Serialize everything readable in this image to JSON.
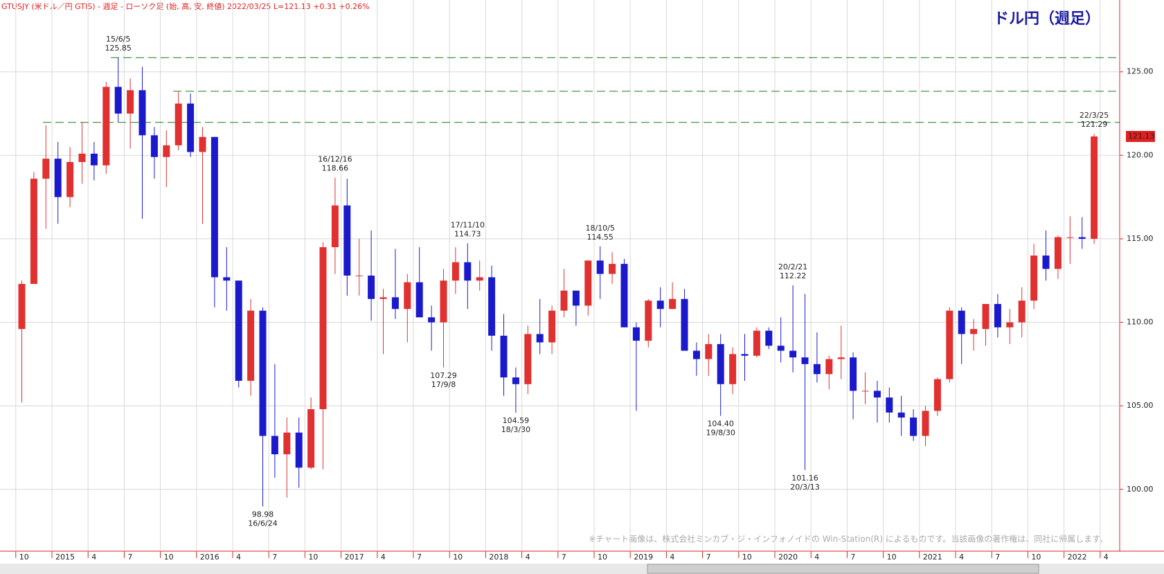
{
  "chart_data": {
    "type": "candlestick",
    "title": "GTUSJY (米ドル／円 GTIS) - 週足 - ローソク足 (始, 高, 安, 終値)  2022/03/25  L=121.13  +0.31  +0.26%",
    "badge": "ドル円（週足）",
    "watermark": "※チャート画像は、株式会社ミンカブ・ジ・インフォノイドの Win-Station(R) によるものです。当該画像の著作権は、同社に帰属します。",
    "up_color": "#e03030",
    "down_color": "#1a1acc",
    "grid": true,
    "ylim": [
      96.3,
      129.3
    ],
    "yticks": [
      {
        "value": 100,
        "label": "100.00"
      },
      {
        "value": 105,
        "label": "105.00"
      },
      {
        "value": 110,
        "label": "110.00"
      },
      {
        "value": 115,
        "label": "115.00"
      },
      {
        "value": 120,
        "label": "120.00"
      },
      {
        "value": 125,
        "label": "125.00"
      }
    ],
    "last_price": 121.13,
    "levels": [
      125.85,
      123.84,
      121.97
    ],
    "xticks": [
      {
        "value": "2014/10",
        "label": "10"
      },
      {
        "value": "2015/01",
        "label": "2015"
      },
      {
        "value": "2015/04",
        "label": "4"
      },
      {
        "value": "2015/07",
        "label": "7"
      },
      {
        "value": "2015/10",
        "label": "10"
      },
      {
        "value": "2016/01",
        "label": "2016"
      },
      {
        "value": "2016/04",
        "label": "4"
      },
      {
        "value": "2016/07",
        "label": "7"
      },
      {
        "value": "2016/10",
        "label": "10"
      },
      {
        "value": "2017/01",
        "label": "2017"
      },
      {
        "value": "2017/04",
        "label": "4"
      },
      {
        "value": "2017/07",
        "label": "7"
      },
      {
        "value": "2017/10",
        "label": "10"
      },
      {
        "value": "2018/01",
        "label": "2018"
      },
      {
        "value": "2018/04",
        "label": "4"
      },
      {
        "value": "2018/07",
        "label": "7"
      },
      {
        "value": "2018/10",
        "label": "10"
      },
      {
        "value": "2019/01",
        "label": "2019"
      },
      {
        "value": "2019/04",
        "label": "4"
      },
      {
        "value": "2019/07",
        "label": "7"
      },
      {
        "value": "2019/10",
        "label": "10"
      },
      {
        "value": "2020/01",
        "label": "2020"
      },
      {
        "value": "2020/04",
        "label": "4"
      },
      {
        "value": "2020/07",
        "label": "7"
      },
      {
        "value": "2020/10",
        "label": "10"
      },
      {
        "value": "2021/01",
        "label": "2021"
      },
      {
        "value": "2021/04",
        "label": "4"
      },
      {
        "value": "2021/07",
        "label": "7"
      },
      {
        "value": "2021/10",
        "label": "10"
      },
      {
        "value": "2022/01",
        "label": "2022"
      },
      {
        "value": "2022/04",
        "label": "4"
      }
    ],
    "x": [
      "2014/10",
      "2014/11",
      "2014/12",
      "2015/01",
      "2015/02",
      "2015/03",
      "2015/04",
      "2015/05",
      "2015/06",
      "2015/07",
      "2015/08",
      "2015/09",
      "2015/10",
      "2015/11",
      "2015/12",
      "2016/01",
      "2016/02",
      "2016/03",
      "2016/04",
      "2016/05",
      "2016/06",
      "2016/07",
      "2016/08",
      "2016/09",
      "2016/10",
      "2016/11",
      "2016/12",
      "2017/01",
      "2017/02",
      "2017/03",
      "2017/04",
      "2017/05",
      "2017/06",
      "2017/07",
      "2017/08",
      "2017/09",
      "2017/10",
      "2017/11",
      "2017/12",
      "2018/01",
      "2018/02",
      "2018/03",
      "2018/04",
      "2018/05",
      "2018/06",
      "2018/07",
      "2018/08",
      "2018/09",
      "2018/10",
      "2018/11",
      "2018/12",
      "2019/01",
      "2019/02",
      "2019/03",
      "2019/04",
      "2019/05",
      "2019/06",
      "2019/07",
      "2019/08",
      "2019/09",
      "2019/10",
      "2019/11",
      "2019/12",
      "2020/01",
      "2020/02",
      "2020/03",
      "2020/04",
      "2020/05",
      "2020/06",
      "2020/07",
      "2020/08",
      "2020/09",
      "2020/10",
      "2020/11",
      "2020/12",
      "2021/01",
      "2021/02",
      "2021/03",
      "2021/04",
      "2021/05",
      "2021/06",
      "2021/07",
      "2021/08",
      "2021/09",
      "2021/10",
      "2021/11",
      "2021/12",
      "2022/01",
      "2022/02",
      "2022/03"
    ],
    "open": [
      109.6,
      112.3,
      118.6,
      119.8,
      117.5,
      119.6,
      120.1,
      119.4,
      124.1,
      122.5,
      123.9,
      121.2,
      119.9,
      120.6,
      123.1,
      120.2,
      121.1,
      112.7,
      112.5,
      106.5,
      110.7,
      103.2,
      102.1,
      103.4,
      101.3,
      104.8,
      114.5,
      117.0,
      112.8,
      112.8,
      111.4,
      111.5,
      110.8,
      112.4,
      110.3,
      110.0,
      112.5,
      113.6,
      112.5,
      112.7,
      109.2,
      106.7,
      106.3,
      109.3,
      108.8,
      110.7,
      111.9,
      111.0,
      113.7,
      112.9,
      113.5,
      109.7,
      108.9,
      111.3,
      110.8,
      111.4,
      108.3,
      107.8,
      108.7,
      106.3,
      108.1,
      108.0,
      109.5,
      108.6,
      108.3,
      107.9,
      107.5,
      106.9,
      107.8,
      107.9,
      105.9,
      105.9,
      105.5,
      104.6,
      104.3,
      103.2,
      104.7,
      106.6,
      110.7,
      109.3,
      109.6,
      111.1,
      109.7,
      110.0,
      111.3,
      114.0,
      113.2,
      115.1,
      115.1,
      115.0
    ],
    "high": [
      112.5,
      119.0,
      121.8,
      120.8,
      120.5,
      122.0,
      120.8,
      124.4,
      125.85,
      124.6,
      125.3,
      121.7,
      121.5,
      123.8,
      123.7,
      121.7,
      121.1,
      114.5,
      112.5,
      111.4,
      110.9,
      107.5,
      104.3,
      104.3,
      105.5,
      114.8,
      118.66,
      118.6,
      115.0,
      115.5,
      112.0,
      114.4,
      112.9,
      114.5,
      111.0,
      113.2,
      114.5,
      114.73,
      113.7,
      113.4,
      110.5,
      107.3,
      109.8,
      111.4,
      111.0,
      113.2,
      111.8,
      113.7,
      114.55,
      114.2,
      113.8,
      110.0,
      111.4,
      112.1,
      112.4,
      112.0,
      108.8,
      109.3,
      109.3,
      108.5,
      109.3,
      109.7,
      109.7,
      110.3,
      112.22,
      111.7,
      109.4,
      108.0,
      109.8,
      108.2,
      107.0,
      106.5,
      106.1,
      105.6,
      104.8,
      105.0,
      106.7,
      110.9,
      110.9,
      110.2,
      111.1,
      111.7,
      110.8,
      112.1,
      114.7,
      115.5,
      115.2,
      116.35,
      116.3,
      121.29
    ],
    "low": [
      105.2,
      112.3,
      115.6,
      115.9,
      116.9,
      118.3,
      118.5,
      118.9,
      122.0,
      120.4,
      116.2,
      118.6,
      118.1,
      120.3,
      119.9,
      115.9,
      110.9,
      110.7,
      106.1,
      105.6,
      98.98,
      100.7,
      99.5,
      100.1,
      101.2,
      101.2,
      112.9,
      111.6,
      111.6,
      110.1,
      108.1,
      110.2,
      108.8,
      110.6,
      108.3,
      107.29,
      111.7,
      110.8,
      111.9,
      108.3,
      105.6,
      104.59,
      105.7,
      108.1,
      108.1,
      110.3,
      109.8,
      110.4,
      111.4,
      112.3,
      110.0,
      104.7,
      108.5,
      109.7,
      110.8,
      108.3,
      106.8,
      106.8,
      104.4,
      105.7,
      106.5,
      107.9,
      108.4,
      107.6,
      107.0,
      101.16,
      106.4,
      105.99,
      106.6,
      104.2,
      105.1,
      104.0,
      104.0,
      103.2,
      102.9,
      102.6,
      104.4,
      106.4,
      107.5,
      108.3,
      108.6,
      109.1,
      108.7,
      109.1,
      110.8,
      112.5,
      112.6,
      113.5,
      114.4,
      114.7
    ],
    "close": [
      112.3,
      118.6,
      119.8,
      117.5,
      119.6,
      120.1,
      119.4,
      124.1,
      122.5,
      123.9,
      121.2,
      119.9,
      120.6,
      123.1,
      120.2,
      121.1,
      112.7,
      112.5,
      106.5,
      110.7,
      103.2,
      102.1,
      103.4,
      101.3,
      104.8,
      114.5,
      117.0,
      112.8,
      112.8,
      111.4,
      111.5,
      110.8,
      112.4,
      110.3,
      110.0,
      112.5,
      113.6,
      112.5,
      112.7,
      109.2,
      106.7,
      106.3,
      109.3,
      108.8,
      110.7,
      111.9,
      111.0,
      113.7,
      112.9,
      113.5,
      109.7,
      108.9,
      111.3,
      110.8,
      111.4,
      108.3,
      107.8,
      108.7,
      106.3,
      108.1,
      108.0,
      109.5,
      108.6,
      108.3,
      107.9,
      107.5,
      106.9,
      107.8,
      107.9,
      105.9,
      105.9,
      105.5,
      104.6,
      104.3,
      103.2,
      104.7,
      106.6,
      110.7,
      109.3,
      109.6,
      111.1,
      109.7,
      110.0,
      111.3,
      114.0,
      113.2,
      115.1,
      115.1,
      115.0,
      121.13
    ],
    "annotations": [
      {
        "x": "2015/06",
        "value": 125.85,
        "date_label": "15/6/5",
        "position": "above"
      },
      {
        "x": "2016/06",
        "value": 98.98,
        "date_label": "16/6/24",
        "position": "below"
      },
      {
        "x": "2016/12",
        "value": 118.66,
        "date_label": "16/12/16",
        "position": "above"
      },
      {
        "x": "2017/09",
        "value": 107.29,
        "date_label": "17/9/8",
        "position": "below"
      },
      {
        "x": "2017/11",
        "value": 114.73,
        "date_label": "17/11/10",
        "position": "above"
      },
      {
        "x": "2018/03",
        "value": 104.59,
        "date_label": "18/3/30",
        "position": "below"
      },
      {
        "x": "2018/10",
        "value": 114.55,
        "date_label": "18/10/5",
        "position": "above"
      },
      {
        "x": "2019/08",
        "value": 104.4,
        "value_label": "104.40",
        "date_label": "19/8/30",
        "position": "below"
      },
      {
        "x": "2020/02",
        "value": 112.22,
        "date_label": "20/2/21",
        "position": "above"
      },
      {
        "x": "2020/03",
        "value": 101.16,
        "date_label": "20/3/13",
        "position": "below"
      },
      {
        "x": "2022/03",
        "value": 121.29,
        "date_label": "22/3/25",
        "position": "above"
      }
    ]
  }
}
